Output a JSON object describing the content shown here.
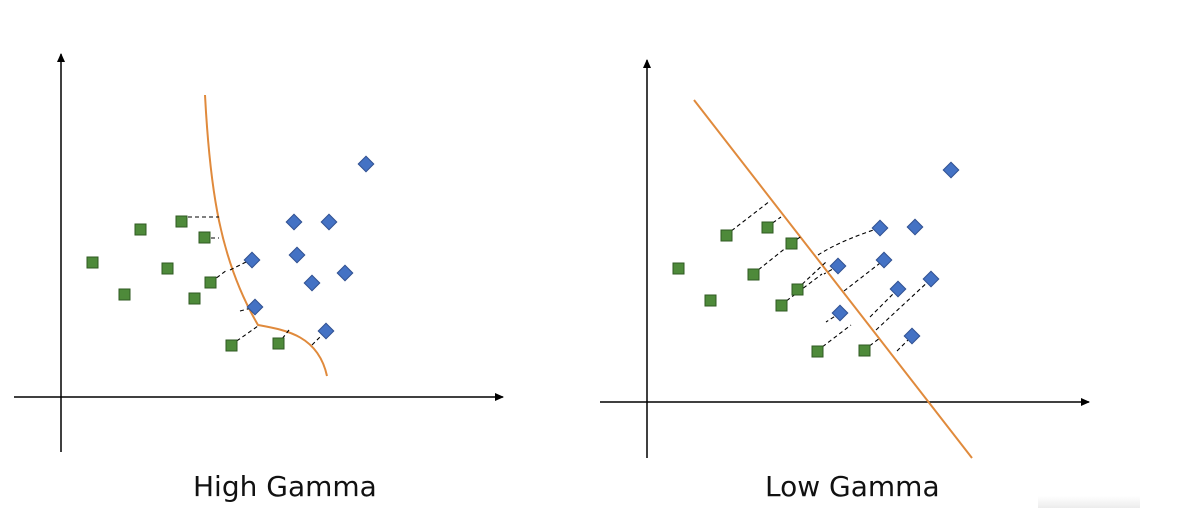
{
  "panels": [
    {
      "caption": "High Gamma",
      "boundary": "curved"
    },
    {
      "caption": "Low Gamma",
      "boundary": "linear"
    }
  ],
  "legend_note": "",
  "colors": {
    "square_fill": "#4e8a3a",
    "square_stroke": "#2f5a22",
    "diamond_fill": "#4472c4",
    "diamond_stroke": "#2f4f8f",
    "boundary": "#e08a3c",
    "axis": "#000000",
    "dash": "#000000"
  },
  "marker_types": [
    "green-square",
    "blue-diamond"
  ]
}
